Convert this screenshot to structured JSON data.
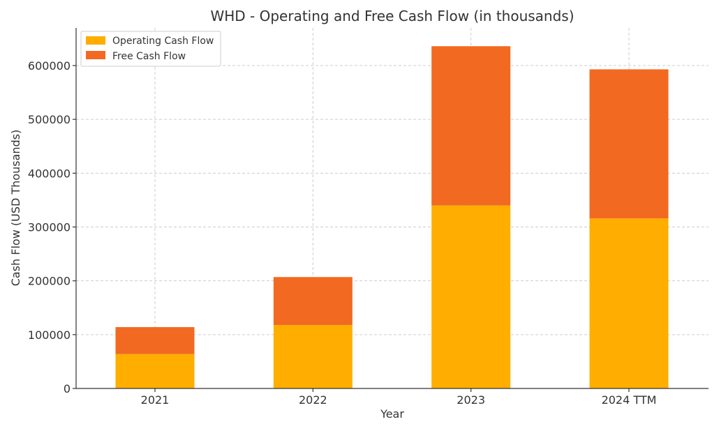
{
  "chart_data": {
    "type": "bar",
    "stacked": true,
    "title": "WHD - Operating and Free Cash Flow (in thousands)",
    "xlabel": "Year",
    "ylabel": "Cash Flow (USD Thousands)",
    "categories": [
      "2021",
      "2022",
      "2023",
      "2024 TTM"
    ],
    "series": [
      {
        "name": "Operating Cash Flow",
        "color": "#FFAE00",
        "values": [
          64000,
          118000,
          340000,
          316000
        ]
      },
      {
        "name": "Free Cash Flow",
        "color": "#F26922",
        "values": [
          50000,
          89000,
          296000,
          277000
        ]
      }
    ],
    "ylim": [
      0,
      670000
    ],
    "yticks": [
      "0",
      "100000",
      "200000",
      "300000",
      "400000",
      "500000",
      "600000"
    ],
    "grid": true,
    "legend_position": "top-left"
  }
}
